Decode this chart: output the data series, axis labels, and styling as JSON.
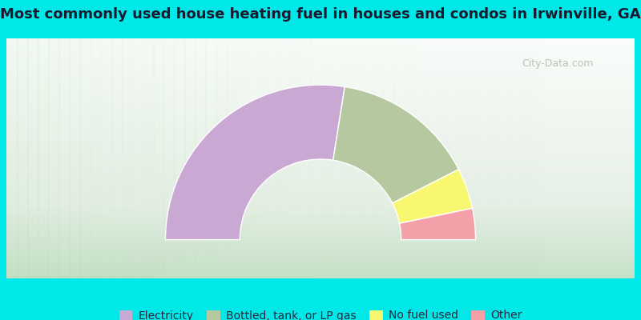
{
  "title": "Most commonly used house heating fuel in houses and condos in Irwinville, GA",
  "title_fontsize": 13,
  "title_color": "#1a1a2e",
  "outer_bg_color": "#00e8e8",
  "inner_bg_gradient_corners": [
    "#a8d4b0",
    "#c8e8c0",
    "#f0f8f0",
    "#e8f4e8"
  ],
  "slices": [
    {
      "label": "Electricity",
      "value": 55.0,
      "color": "#c9a8d4"
    },
    {
      "label": "Bottled, tank, or LP gas",
      "value": 30.0,
      "color": "#b5c8a0"
    },
    {
      "label": "No fuel used",
      "value": 8.5,
      "color": "#f8f870"
    },
    {
      "label": "Other",
      "value": 6.5,
      "color": "#f4a0a8"
    }
  ],
  "legend_fontsize": 10,
  "legend_text_color": "#2a2a3e",
  "watermark_text": "City-Data.com",
  "outer_r": 1.0,
  "inner_r": 0.52
}
